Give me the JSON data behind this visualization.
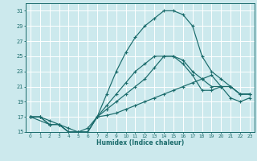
{
  "xlabel": "Humidex (Indice chaleur)",
  "background_color": "#cce9ed",
  "grid_color": "#ffffff",
  "line_color": "#1a6b6b",
  "xlim": [
    -0.5,
    23.5
  ],
  "ylim": [
    15,
    32
  ],
  "xticks": [
    0,
    1,
    2,
    3,
    4,
    5,
    6,
    7,
    8,
    9,
    10,
    11,
    12,
    13,
    14,
    15,
    16,
    17,
    18,
    19,
    20,
    21,
    22,
    23
  ],
  "yticks": [
    15,
    17,
    19,
    21,
    23,
    25,
    27,
    29,
    31
  ],
  "line1_x": [
    0,
    1,
    2,
    3,
    4,
    5,
    6,
    7,
    8,
    9,
    10,
    11,
    12,
    13,
    14,
    15,
    16,
    17,
    18,
    19,
    20,
    21,
    22,
    23
  ],
  "line1_y": [
    17,
    17,
    16,
    16,
    15,
    15,
    15,
    17,
    17.2,
    17.5,
    18,
    18.5,
    19,
    19.5,
    20,
    20.5,
    21,
    21.5,
    22,
    22.5,
    21,
    19.5,
    19,
    19.5
  ],
  "line2_x": [
    0,
    1,
    2,
    3,
    4,
    5,
    6,
    7,
    8,
    9,
    10,
    11,
    12,
    13,
    14,
    15,
    16,
    17,
    18,
    19,
    20,
    21,
    22,
    23
  ],
  "line2_y": [
    17,
    17,
    16,
    16,
    15,
    15,
    15,
    17,
    18,
    19,
    20,
    21,
    22,
    23.5,
    25,
    25,
    24,
    22.5,
    20.5,
    20.5,
    21,
    21,
    20,
    20
  ],
  "line3_x": [
    0,
    2,
    3,
    4,
    5,
    6,
    7,
    8,
    9,
    10,
    11,
    12,
    13,
    14,
    15,
    16,
    17,
    18,
    19,
    20,
    21,
    22,
    23
  ],
  "line3_y": [
    17,
    16,
    16,
    15,
    15,
    15,
    17,
    20,
    23,
    25.5,
    27.5,
    29,
    30,
    31,
    31,
    30.5,
    29,
    25,
    23,
    22,
    21,
    20,
    20
  ],
  "line4_x": [
    0,
    1,
    2,
    3,
    4,
    5,
    6,
    7,
    8,
    9,
    10,
    11,
    12,
    13,
    14,
    15,
    16,
    17,
    18,
    19,
    20,
    21,
    22,
    23
  ],
  "line4_y": [
    17,
    17,
    16.5,
    16,
    15.5,
    15,
    15.5,
    17,
    18.5,
    20,
    21.5,
    23,
    24,
    25,
    25,
    25,
    24.5,
    23,
    22,
    21,
    21,
    21,
    20,
    20
  ]
}
